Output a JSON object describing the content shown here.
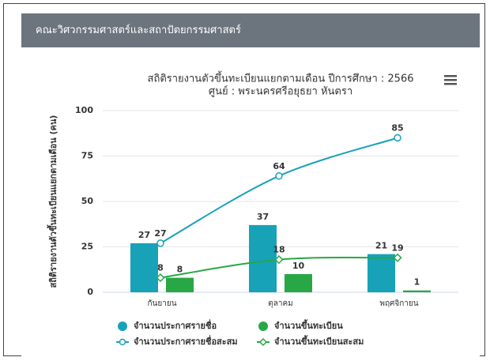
{
  "header": {
    "title": "คณะวิศวกรรมศาสตร์และสถาปัตยกรรมศาสตร์"
  },
  "chart_data": {
    "type": "combo",
    "title": "สถิติรายงานตัวขึ้นทะเบียนแยกตามเดือน ปีการศึกษา : 2566",
    "subtitle": "ศูนย์ : พระนครศรีอยุธยา หันตรา",
    "ylabel": "สถิติรายงานตัวขึ้นทะเบียนแยกตามเดือน (คน)",
    "categories": [
      "กันยายน",
      "ตุลาคม",
      "พฤศจิกายน"
    ],
    "series": [
      {
        "name": "จำนวนประกาศรายชื่อ",
        "type": "bar",
        "color": "#17a2b8",
        "values": [
          27,
          37,
          21
        ]
      },
      {
        "name": "จำนวนขึ้นทะเบียน",
        "type": "bar",
        "color": "#28a745",
        "values": [
          8,
          10,
          1
        ]
      },
      {
        "name": "จำนวนประกาศรายชื่อสะสม",
        "type": "line",
        "marker": "circle",
        "color": "#17a2b8",
        "values": [
          27,
          64,
          85
        ]
      },
      {
        "name": "จำนวนขึ้นทะเบียนสะสม",
        "type": "line",
        "marker": "diamond",
        "color": "#28a745",
        "values": [
          8,
          18,
          19
        ]
      }
    ],
    "ylim": [
      0,
      100
    ],
    "yticks": [
      0,
      25,
      50,
      75,
      100
    ],
    "grid": true
  }
}
